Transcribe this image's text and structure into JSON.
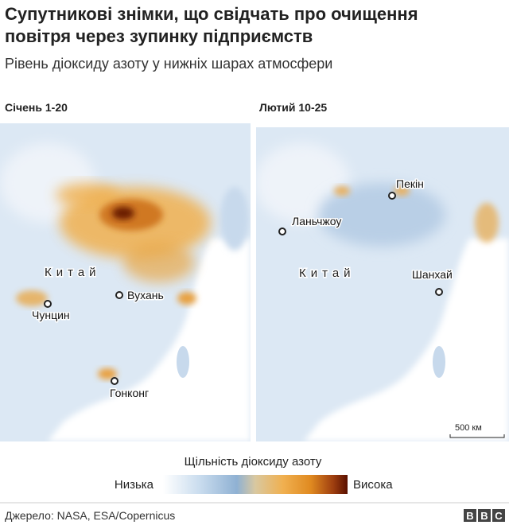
{
  "header": {
    "title": "Супутникові знімки, що свідчать про очищення повітря через зупинку підприємств",
    "subtitle": "Рівень діоксиду азоту у нижніх шарах атмосфери"
  },
  "panels": [
    {
      "label": "Січень 1-20",
      "places": [
        "Китай",
        "Чунцин",
        "Вухань",
        "Гонконг"
      ]
    },
    {
      "label": "Лютий 10-25",
      "places": [
        "Пекін",
        "Ланьчжоу",
        "Китай",
        "Шанхай"
      ]
    }
  ],
  "scale": "500 км",
  "legend": {
    "title": "Щільність діоксиду азоту",
    "low": "Низька",
    "high": "Висока"
  },
  "footer": {
    "source": "Джерело: NASA, ESA/Copernicus",
    "logo": [
      "B",
      "B",
      "C"
    ]
  }
}
